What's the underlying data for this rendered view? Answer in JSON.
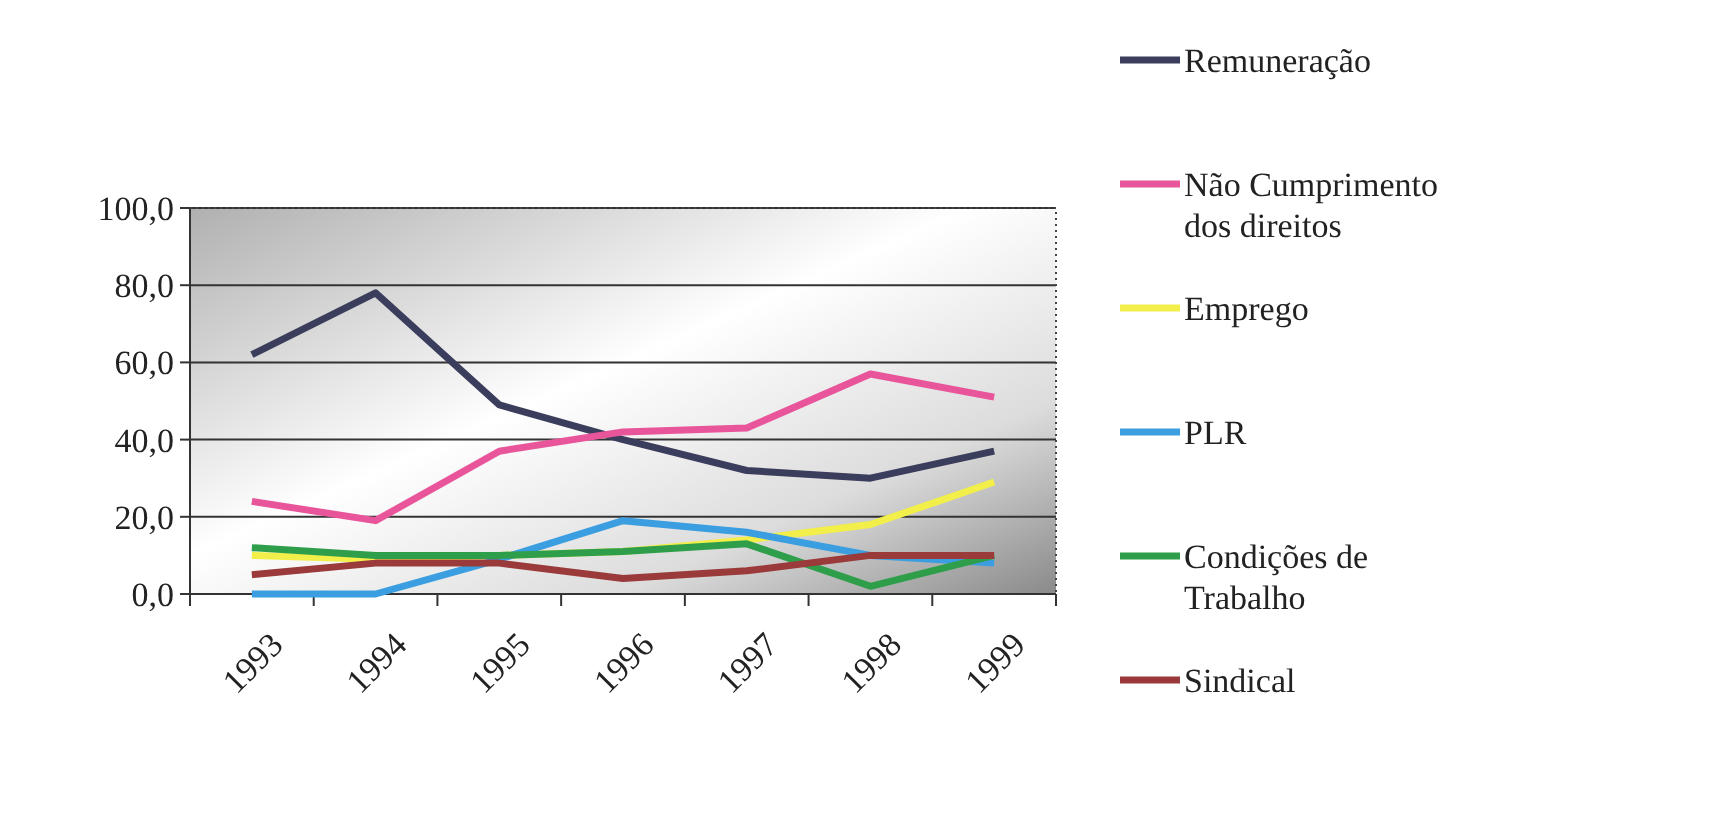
{
  "chart_data": {
    "type": "line",
    "categories": [
      "1993",
      "1994",
      "1995",
      "1996",
      "1997",
      "1998",
      "1999"
    ],
    "series": [
      {
        "name": "Remuneração",
        "color": "#3b3d5c",
        "values": [
          62,
          78,
          49,
          40,
          32,
          30,
          37
        ]
      },
      {
        "name": "Não Cumprimento dos direitos",
        "color": "#e8559a",
        "values": [
          24,
          19,
          37,
          42,
          43,
          57,
          51
        ]
      },
      {
        "name": "Emprego",
        "color": "#f2ee4a",
        "values": [
          10,
          9,
          10,
          11,
          14,
          18,
          29
        ]
      },
      {
        "name": "PLR",
        "color": "#3a9ee0",
        "values": [
          0,
          0,
          9,
          19,
          16,
          10,
          8
        ]
      },
      {
        "name": "Condições de Trabalho",
        "color": "#2e9e4a",
        "values": [
          12,
          10,
          10,
          11,
          13,
          2,
          10
        ]
      },
      {
        "name": "Sindical",
        "color": "#9a3a3a",
        "values": [
          5,
          8,
          8,
          4,
          6,
          10,
          10
        ]
      }
    ],
    "ylim": [
      0,
      100
    ],
    "yticks": [
      {
        "value": 0,
        "label": "0,0"
      },
      {
        "value": 20,
        "label": "20,0"
      },
      {
        "value": 40,
        "label": "40,0"
      },
      {
        "value": 60,
        "label": "60,0"
      },
      {
        "value": 80,
        "label": "80,0"
      },
      {
        "value": 100,
        "label": "100,0"
      }
    ],
    "grid": "y",
    "legend": "right",
    "marker": "none",
    "line_style": "solid"
  }
}
